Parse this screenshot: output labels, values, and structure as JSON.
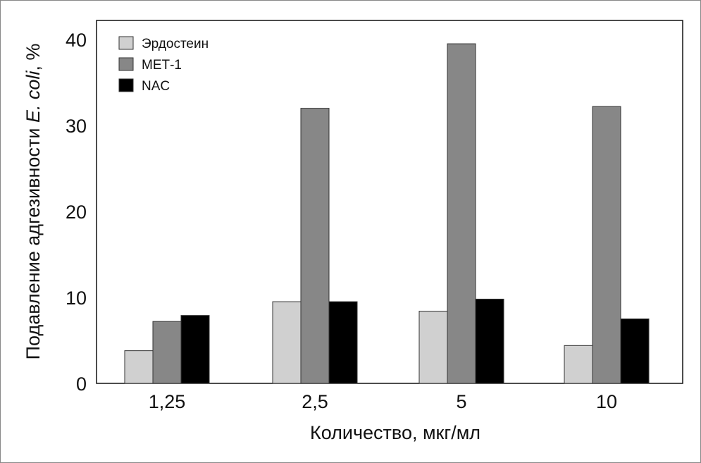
{
  "chart_data": {
    "type": "bar",
    "title": "",
    "xlabel": "Количество, мкг/мл",
    "ylabel_prefix": "Подавление адгезивности ",
    "ylabel_italic": "E. coli",
    "ylabel_suffix": ", %",
    "categories": [
      "1,25",
      "2,5",
      "5",
      "10"
    ],
    "ylim": [
      0,
      40
    ],
    "yticks": [
      0,
      10,
      20,
      30,
      40
    ],
    "grid": false,
    "legend_position": "top-left",
    "series": [
      {
        "name": "Эрдостеин",
        "color": "#d0d0d0",
        "values": [
          3.8,
          9.5,
          8.4,
          4.4
        ]
      },
      {
        "name": "МЕТ-1",
        "color": "#878787",
        "values": [
          7.2,
          32.0,
          39.5,
          32.2
        ]
      },
      {
        "name": "NAC",
        "color": "#000000",
        "values": [
          7.9,
          9.5,
          9.8,
          7.5
        ]
      }
    ]
  }
}
